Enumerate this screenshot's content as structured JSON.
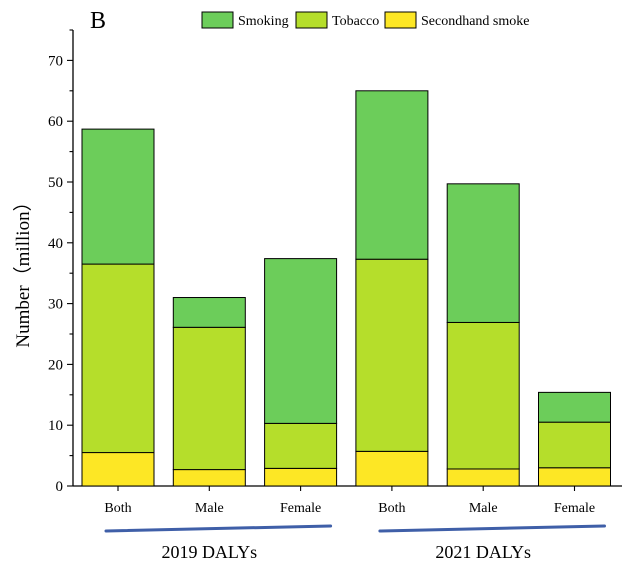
{
  "chart_data": {
    "type": "bar",
    "stacked": true,
    "panel_label": "B",
    "ylabel": "Number（million）",
    "ylim": [
      0,
      75
    ],
    "yticks": [
      0,
      10,
      20,
      30,
      40,
      50,
      60,
      70
    ],
    "categories": [
      "Both",
      "Male",
      "Female",
      "Both",
      "Male",
      "Female"
    ],
    "groups": [
      {
        "label": "2019 DALYs",
        "members": [
          0,
          1,
          2
        ]
      },
      {
        "label": "2021 DALYs",
        "members": [
          3,
          4,
          5
        ]
      }
    ],
    "series": [
      {
        "name": "Secondhand smoke",
        "color": "#fde725",
        "values": [
          5.5,
          2.7,
          2.9,
          5.7,
          2.8,
          3.0
        ]
      },
      {
        "name": "Tobacco",
        "color": "#b5de2b",
        "values": [
          31.0,
          23.4,
          7.4,
          31.6,
          24.1,
          7.5
        ]
      },
      {
        "name": "Smoking",
        "color": "#6ccd5a",
        "values": [
          22.2,
          4.9,
          27.1,
          27.7,
          22.8,
          4.9
        ]
      }
    ],
    "legend_order": [
      "Smoking",
      "Tobacco",
      "Secondhand smoke"
    ],
    "legend_position": "top",
    "group_underline_color": "#3f5fa8",
    "grid": false
  }
}
